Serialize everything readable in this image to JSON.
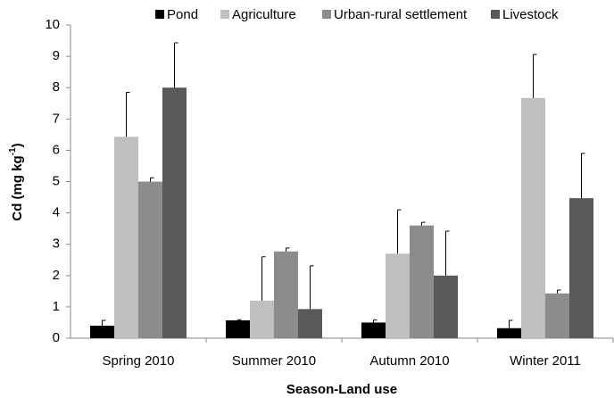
{
  "chart_data": {
    "type": "bar",
    "x_label": "Season-Land use",
    "y_label": "Cd  (mg kg",
    "y_label_sup": "-1",
    "y_label_end": ")",
    "categories": [
      "Spring 2010",
      "Summer 2010",
      "Autumn 2010",
      "Winter 2011"
    ],
    "series": [
      {
        "name": "Pond",
        "color": "#000000",
        "values": [
          0.4,
          0.57,
          0.5,
          0.32
        ],
        "errors": [
          0.17,
          0.02,
          0.08,
          0.25
        ]
      },
      {
        "name": "Agriculture",
        "color": "#bfbfbf",
        "values": [
          6.43,
          1.2,
          2.7,
          7.67
        ],
        "errors": [
          1.42,
          1.4,
          1.4,
          1.39
        ]
      },
      {
        "name": "Urban-rural settlement",
        "color": "#8c8c8c",
        "values": [
          5.0,
          2.77,
          3.6,
          1.43
        ],
        "errors": [
          0.12,
          0.11,
          0.1,
          0.11
        ]
      },
      {
        "name": "Livestock",
        "color": "#595959",
        "values": [
          8.0,
          0.93,
          2.0,
          4.47
        ],
        "errors": [
          1.43,
          1.38,
          1.42,
          1.43
        ]
      }
    ],
    "ylim": [
      0,
      10
    ],
    "yticks": [
      0,
      1,
      2,
      3,
      4,
      5,
      6,
      7,
      8,
      9,
      10
    ],
    "legend": "top"
  }
}
